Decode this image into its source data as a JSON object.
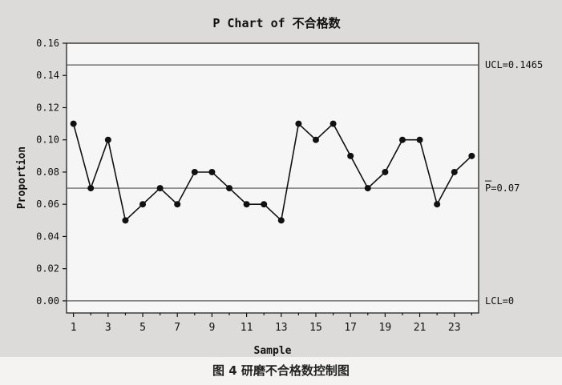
{
  "chart_data": {
    "type": "line",
    "title": "P Chart of 不合格数",
    "xlabel": "Sample",
    "ylabel": "Proportion",
    "x": [
      1,
      2,
      3,
      4,
      5,
      6,
      7,
      8,
      9,
      10,
      11,
      12,
      13,
      14,
      15,
      16,
      17,
      18,
      19,
      20,
      21,
      22,
      23,
      24
    ],
    "values": [
      0.11,
      0.07,
      0.1,
      0.05,
      0.06,
      0.07,
      0.06,
      0.08,
      0.08,
      0.07,
      0.06,
      0.06,
      0.05,
      0.11,
      0.1,
      0.11,
      0.09,
      0.07,
      0.08,
      0.1,
      0.1,
      0.06,
      0.08,
      0.09
    ],
    "xticks": [
      1,
      3,
      5,
      7,
      9,
      11,
      13,
      15,
      17,
      19,
      21,
      23
    ],
    "yticks": [
      0.0,
      0.02,
      0.04,
      0.06,
      0.08,
      0.1,
      0.12,
      0.14,
      0.16
    ],
    "ytick_labels": [
      "0.00",
      "0.02",
      "0.04",
      "0.06",
      "0.08",
      "0.10",
      "0.12",
      "0.14",
      "0.16"
    ],
    "xlim": [
      0.6,
      24.4
    ],
    "ylim": [
      -0.0075,
      0.16
    ],
    "control_lines": [
      {
        "value": 0.1465,
        "label": "UCL=0.1465"
      },
      {
        "value": 0.07,
        "label": "P=0.07",
        "overline": "P"
      },
      {
        "value": 0.0,
        "label": "LCL=0"
      }
    ],
    "grid": false,
    "colors": {
      "line": "#111111",
      "marker": "#111111",
      "plot_bg": "#f6f6f6",
      "panel_bg": "#dcdbd9"
    }
  },
  "caption": "图 4   研磨不合格数控制图"
}
